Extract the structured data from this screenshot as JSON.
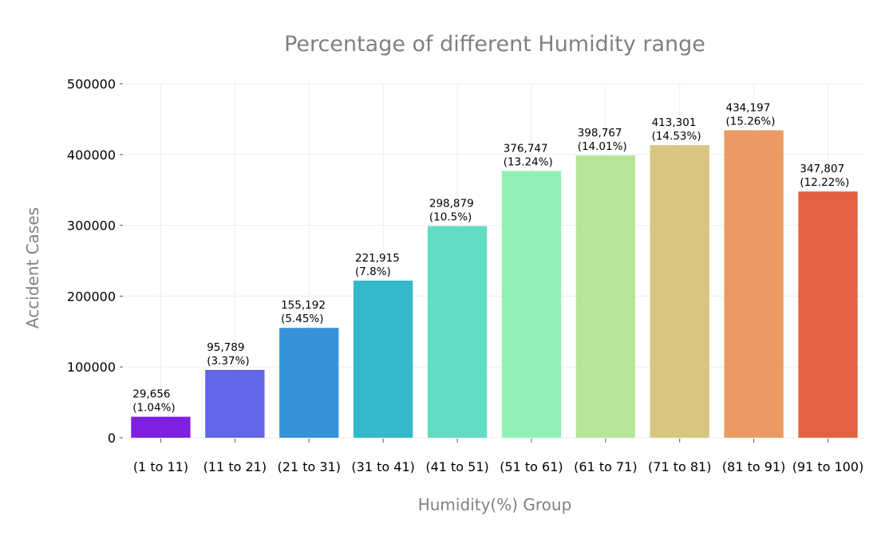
{
  "chart_data": {
    "type": "bar",
    "title": "Percentage of different Humidity range",
    "xlabel": "Humidity(%) Group",
    "ylabel": "Accident Cases",
    "categories": [
      "(1 to 11)",
      "(11 to 21)",
      "(21 to 31)",
      "(31 to 41)",
      "(41 to 51)",
      "(51 to 61)",
      "(61 to 71)",
      "(71 to 81)",
      "(81 to 91)",
      "(91 to 100)"
    ],
    "values": [
      29656,
      95789,
      155192,
      221915,
      298879,
      376747,
      398767,
      413301,
      434197,
      347807
    ],
    "value_labels": [
      "29,656",
      "95,789",
      "155,192",
      "221,915",
      "298,879",
      "376,747",
      "398,767",
      "413,301",
      "434,197",
      "347,807"
    ],
    "percent_labels": [
      "(1.04%)",
      "(3.37%)",
      "(5.45%)",
      "(7.8%)",
      "(10.5%)",
      "(13.24%)",
      "(14.01%)",
      "(14.53%)",
      "(15.26%)",
      "(12.22%)"
    ],
    "colors": [
      "#7f1fe0",
      "#6266e7",
      "#3793d9",
      "#33b8cc",
      "#60ddc2",
      "#91f0b6",
      "#b6e69a",
      "#d8c680",
      "#ea9b64",
      "#e36243"
    ],
    "yticks": [
      0,
      100000,
      200000,
      300000,
      400000,
      500000
    ],
    "ytick_labels": [
      "0",
      "100000",
      "200000",
      "300000",
      "400000",
      "500000"
    ],
    "ylim": [
      0,
      500000
    ],
    "grid": true
  }
}
